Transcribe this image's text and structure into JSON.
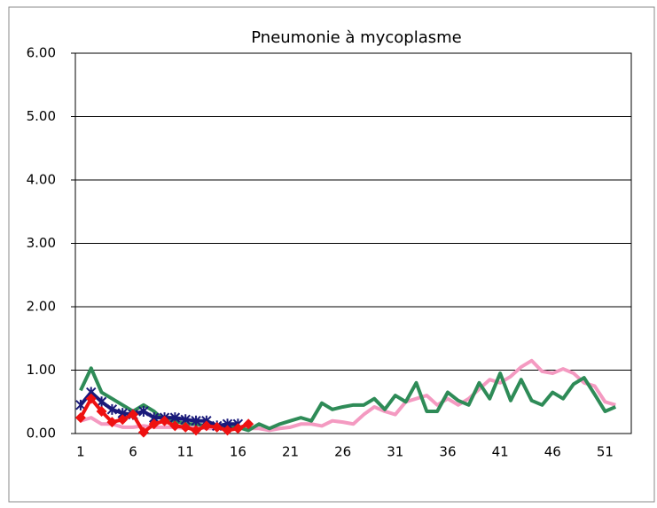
{
  "chart_data": {
    "type": "line",
    "title": "Pneumonie à mycoplasme",
    "categories": [
      "1",
      null,
      null,
      null,
      null,
      "6",
      null,
      null,
      null,
      null,
      "11",
      null,
      null,
      null,
      null,
      "16",
      null,
      null,
      null,
      null,
      "21",
      null,
      null,
      null,
      null,
      "26",
      null,
      null,
      null,
      null,
      "31",
      null,
      null,
      null,
      null,
      "36",
      null,
      null,
      null,
      null,
      "41",
      null,
      null,
      null,
      null,
      "46",
      null,
      null,
      null,
      null,
      "51",
      null,
      null
    ],
    "ylim": [
      0,
      6
    ],
    "yticks": [
      {
        "value": 0,
        "label": "0.00"
      },
      {
        "value": 1,
        "label": "1.00"
      },
      {
        "value": 2,
        "label": "2.00"
      },
      {
        "value": 3,
        "label": "3.00"
      },
      {
        "value": 4,
        "label": "4.00"
      },
      {
        "value": 5,
        "label": "5.00"
      },
      {
        "value": 6,
        "label": "6.00"
      }
    ],
    "grid": true,
    "series": [
      {
        "color": "#f49ac1",
        "marker": "none",
        "values": [
          0.2,
          0.25,
          0.15,
          0.15,
          0.1,
          0.1,
          0.12,
          0.1,
          0.1,
          0.1,
          0.08,
          0.1,
          0.08,
          0.08,
          0.1,
          0.1,
          0.08,
          0.08,
          0.05,
          0.08,
          0.1,
          0.15,
          0.15,
          0.12,
          0.2,
          0.18,
          0.15,
          0.3,
          0.42,
          0.35,
          0.3,
          0.5,
          0.55,
          0.6,
          0.45,
          0.55,
          0.45,
          0.55,
          0.7,
          0.85,
          0.8,
          0.9,
          1.05,
          1.15,
          0.98,
          0.95,
          1.02,
          0.95,
          0.8,
          0.75,
          0.5,
          0.45,
          null
        ]
      },
      {
        "color": "#2e8b57",
        "marker": "none",
        "values": [
          0.68,
          1.03,
          0.65,
          0.55,
          0.45,
          0.35,
          0.45,
          0.35,
          0.2,
          0.2,
          0.15,
          0.15,
          0.12,
          0.12,
          0.1,
          0.1,
          0.05,
          0.15,
          0.08,
          0.15,
          0.2,
          0.25,
          0.2,
          0.48,
          0.38,
          0.42,
          0.45,
          0.45,
          0.55,
          0.38,
          0.6,
          0.5,
          0.8,
          0.35,
          0.35,
          0.65,
          0.52,
          0.45,
          0.8,
          0.55,
          0.95,
          0.52,
          0.85,
          0.52,
          0.45,
          0.65,
          0.55,
          0.78,
          0.88,
          0.62,
          0.35,
          0.42,
          null
        ]
      },
      {
        "color": "#1a1a7a",
        "marker": "x",
        "values": [
          0.45,
          0.65,
          0.5,
          0.38,
          0.32,
          0.3,
          0.35,
          0.25,
          0.25,
          0.25,
          0.22,
          0.2,
          0.2,
          0.12,
          0.15,
          0.15,
          null,
          null,
          null,
          null,
          null,
          null,
          null,
          null,
          null,
          null,
          null,
          null,
          null,
          null,
          null,
          null,
          null,
          null,
          null,
          null,
          null,
          null,
          null,
          null,
          null,
          null,
          null,
          null,
          null,
          null,
          null,
          null,
          null,
          null,
          null,
          null,
          null
        ]
      },
      {
        "color": "#ee1111",
        "marker": "diamond",
        "values": [
          0.25,
          0.55,
          0.35,
          0.18,
          0.22,
          0.3,
          0.02,
          0.15,
          0.2,
          0.12,
          0.1,
          0.05,
          0.12,
          0.1,
          0.05,
          0.08,
          0.15,
          null,
          null,
          null,
          null,
          null,
          null,
          null,
          null,
          null,
          null,
          null,
          null,
          null,
          null,
          null,
          null,
          null,
          null,
          null,
          null,
          null,
          null,
          null,
          null,
          null,
          null,
          null,
          null,
          null,
          null,
          null,
          null,
          null,
          null,
          null,
          null
        ]
      }
    ]
  }
}
